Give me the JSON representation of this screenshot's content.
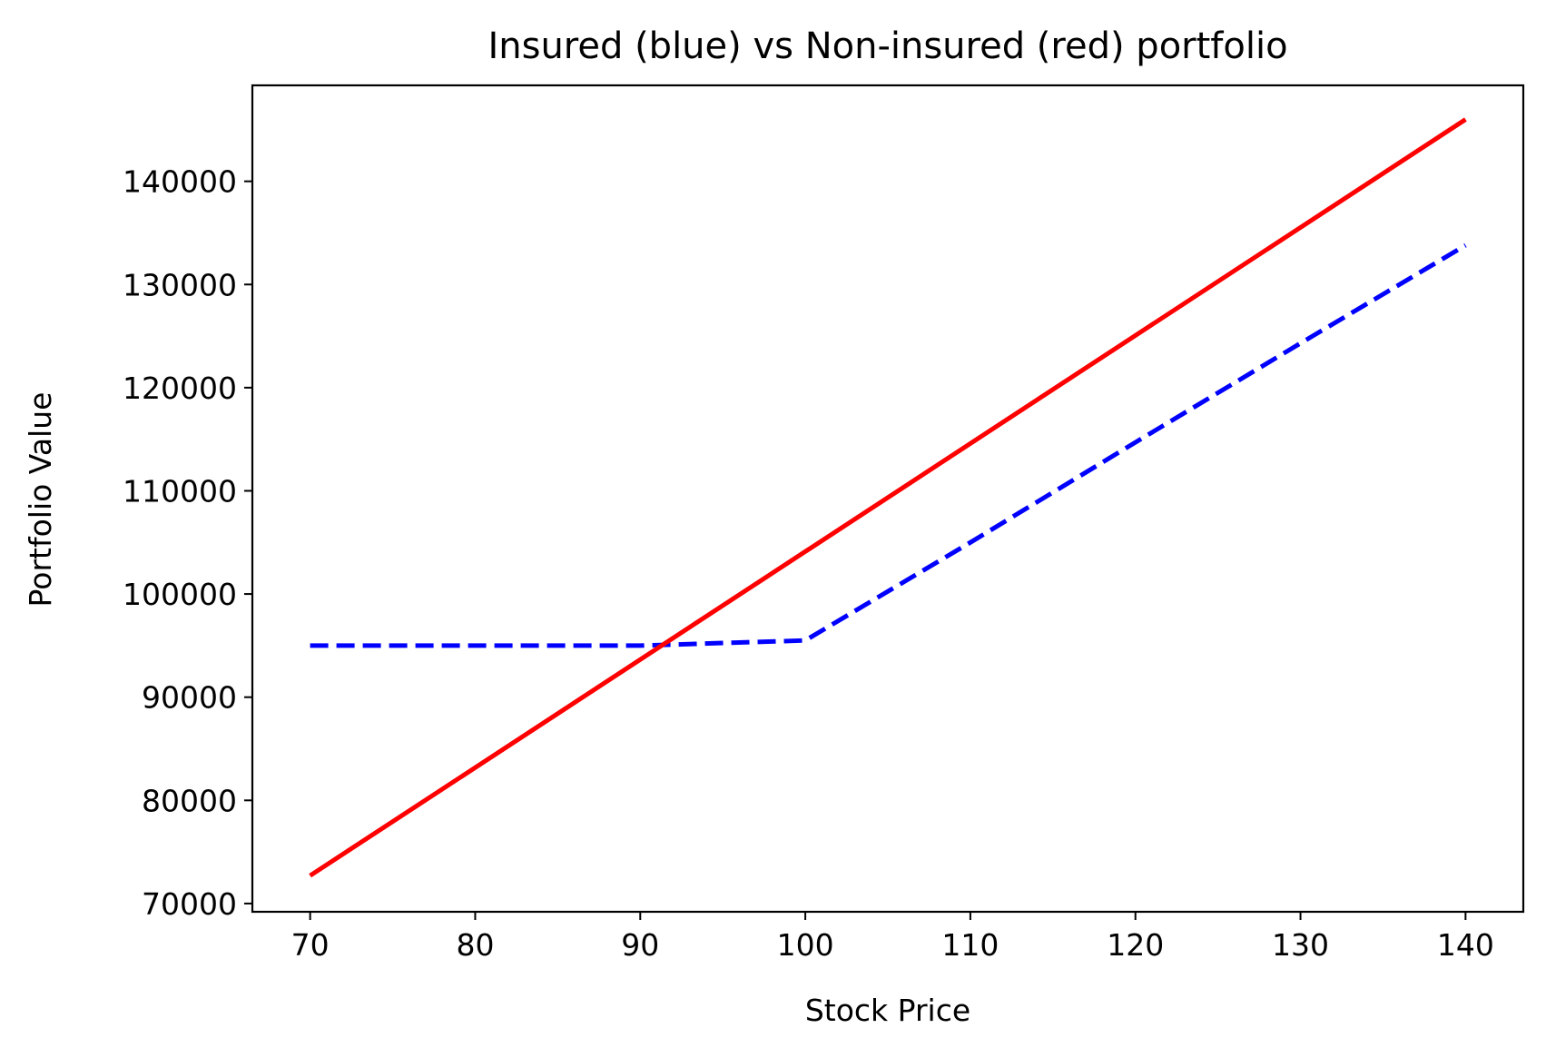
{
  "chart_data": {
    "type": "line",
    "title": "Insured (blue) vs Non-insured (red) portfolio",
    "xlabel": "Stock Price",
    "ylabel": "Portfolio Value",
    "xlim": [
      66.5,
      143.5
    ],
    "ylim": [
      69200,
      149300
    ],
    "xticks": [
      70,
      80,
      90,
      100,
      110,
      120,
      130,
      140
    ],
    "yticks": [
      70000,
      80000,
      90000,
      100000,
      110000,
      120000,
      130000,
      140000
    ],
    "grid": false,
    "series": [
      {
        "color": "#0000ff",
        "linestyle": "dashed",
        "x": [
          70,
          90,
          100,
          110,
          120,
          130,
          140
        ],
        "y": [
          95000,
          95000,
          95500,
          105000,
          114700,
          124300,
          133800
        ]
      },
      {
        "color": "#ff0000",
        "linestyle": "solid",
        "x": [
          70,
          140
        ],
        "y": [
          72700,
          146000
        ]
      }
    ]
  }
}
